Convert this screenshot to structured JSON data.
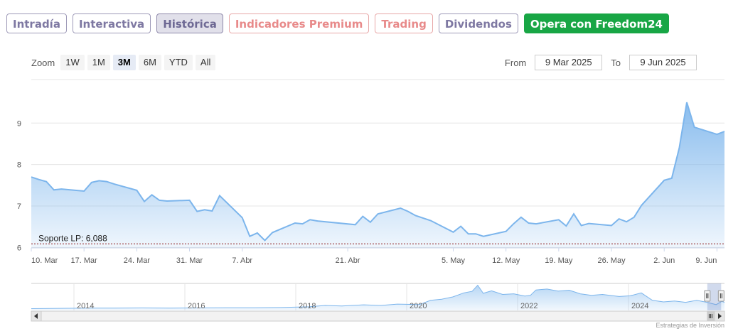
{
  "tabs": [
    {
      "label": "Intradía",
      "style": "normal"
    },
    {
      "label": "Interactiva",
      "style": "normal"
    },
    {
      "label": "Histórica",
      "style": "active"
    },
    {
      "label": "Indicadores Premium",
      "style": "pink"
    },
    {
      "label": "Trading",
      "style": "pink"
    },
    {
      "label": "Dividendos",
      "style": "normal"
    },
    {
      "label": "Opera con Freedom24",
      "style": "cta"
    }
  ],
  "zoom": {
    "label": "Zoom",
    "buttons": [
      "1W",
      "1M",
      "3M",
      "6M",
      "YTD",
      "All"
    ],
    "selected": "3M"
  },
  "range": {
    "from_label": "From",
    "from_value": "9 Mar 2025",
    "to_label": "To",
    "to_value": "9 Jun 2025"
  },
  "credit": "Estrategias de Inversión",
  "colors": {
    "line": "#7cb5ec",
    "support": "#8b1a1a",
    "cta": "#18a645"
  },
  "chart_data": {
    "type": "area",
    "y_ticks": [
      6,
      7,
      8,
      9
    ],
    "ylim": [
      5.99,
      10.05
    ],
    "x_range": [
      "2025-03-10",
      "2025-06-10"
    ],
    "x_ticks": [
      {
        "date": "2025-03-10",
        "label": "10. Mar"
      },
      {
        "date": "2025-03-17",
        "label": "17. Mar"
      },
      {
        "date": "2025-03-24",
        "label": "24. Mar"
      },
      {
        "date": "2025-03-31",
        "label": "31. Mar"
      },
      {
        "date": "2025-04-07",
        "label": "7. Abr"
      },
      {
        "date": "2025-04-21",
        "label": "21. Abr"
      },
      {
        "date": "2025-05-05",
        "label": "5. May"
      },
      {
        "date": "2025-05-12",
        "label": "12. May"
      },
      {
        "date": "2025-05-19",
        "label": "19. May"
      },
      {
        "date": "2025-05-26",
        "label": "26. May"
      },
      {
        "date": "2025-06-02",
        "label": "2. Jun"
      },
      {
        "date": "2025-06-09",
        "label": "9. Jun"
      }
    ],
    "support": {
      "label": "Soporte LP: 6,088",
      "value": 6.088
    },
    "series": [
      {
        "points": [
          [
            "2025-03-10",
            7.7
          ],
          [
            "2025-03-11",
            7.64
          ],
          [
            "2025-03-12",
            7.59
          ],
          [
            "2025-03-13",
            7.39
          ],
          [
            "2025-03-14",
            7.41
          ],
          [
            "2025-03-17",
            7.36
          ],
          [
            "2025-03-18",
            7.57
          ],
          [
            "2025-03-19",
            7.61
          ],
          [
            "2025-03-20",
            7.59
          ],
          [
            "2025-03-21",
            7.53
          ],
          [
            "2025-03-24",
            7.38
          ],
          [
            "2025-03-25",
            7.11
          ],
          [
            "2025-03-26",
            7.27
          ],
          [
            "2025-03-27",
            7.14
          ],
          [
            "2025-03-28",
            7.12
          ],
          [
            "2025-03-31",
            7.14
          ],
          [
            "2025-04-01",
            6.87
          ],
          [
            "2025-04-02",
            6.91
          ],
          [
            "2025-04-03",
            6.88
          ],
          [
            "2025-04-04",
            7.25
          ],
          [
            "2025-04-07",
            6.72
          ],
          [
            "2025-04-08",
            6.27
          ],
          [
            "2025-04-09",
            6.35
          ],
          [
            "2025-04-10",
            6.17
          ],
          [
            "2025-04-11",
            6.36
          ],
          [
            "2025-04-14",
            6.59
          ],
          [
            "2025-04-15",
            6.57
          ],
          [
            "2025-04-16",
            6.67
          ],
          [
            "2025-04-17",
            6.64
          ],
          [
            "2025-04-22",
            6.55
          ],
          [
            "2025-04-23",
            6.75
          ],
          [
            "2025-04-24",
            6.61
          ],
          [
            "2025-04-25",
            6.81
          ],
          [
            "2025-04-28",
            6.95
          ],
          [
            "2025-04-29",
            6.87
          ],
          [
            "2025-04-30",
            6.77
          ],
          [
            "2025-05-02",
            6.65
          ],
          [
            "2025-05-05",
            6.37
          ],
          [
            "2025-05-06",
            6.51
          ],
          [
            "2025-05-07",
            6.33
          ],
          [
            "2025-05-08",
            6.33
          ],
          [
            "2025-05-09",
            6.27
          ],
          [
            "2025-05-12",
            6.39
          ],
          [
            "2025-05-13",
            6.57
          ],
          [
            "2025-05-14",
            6.73
          ],
          [
            "2025-05-15",
            6.59
          ],
          [
            "2025-05-16",
            6.57
          ],
          [
            "2025-05-19",
            6.67
          ],
          [
            "2025-05-20",
            6.52
          ],
          [
            "2025-05-21",
            6.81
          ],
          [
            "2025-05-22",
            6.53
          ],
          [
            "2025-05-23",
            6.58
          ],
          [
            "2025-05-26",
            6.53
          ],
          [
            "2025-05-27",
            6.69
          ],
          [
            "2025-05-28",
            6.62
          ],
          [
            "2025-05-29",
            6.73
          ],
          [
            "2025-05-30",
            7.02
          ],
          [
            "2025-06-02",
            7.62
          ],
          [
            "2025-06-03",
            7.67
          ],
          [
            "2025-06-04",
            8.4
          ],
          [
            "2025-06-05",
            9.5
          ],
          [
            "2025-06-06",
            8.9
          ],
          [
            "2025-06-09",
            8.73
          ],
          [
            "2025-06-10",
            8.8
          ]
        ]
      }
    ],
    "navigator": {
      "x_range": [
        2013.0,
        2025.5
      ],
      "labels": [
        "2014",
        "2016",
        "2018",
        "2020",
        "2022",
        "2024"
      ],
      "points": [
        [
          2013.0,
          0.8
        ],
        [
          2013.5,
          0.9
        ],
        [
          2014.0,
          1.0
        ],
        [
          2014.5,
          1.0
        ],
        [
          2015.0,
          1.1
        ],
        [
          2015.5,
          1.0
        ],
        [
          2016.0,
          1.1
        ],
        [
          2016.5,
          1.2
        ],
        [
          2017.0,
          1.2
        ],
        [
          2017.5,
          1.3
        ],
        [
          2018.0,
          1.6
        ],
        [
          2018.3,
          2.2
        ],
        [
          2018.6,
          2.0
        ],
        [
          2019.0,
          2.5
        ],
        [
          2019.3,
          2.2
        ],
        [
          2019.6,
          2.8
        ],
        [
          2020.0,
          2.6
        ],
        [
          2020.2,
          4.5
        ],
        [
          2020.4,
          5.0
        ],
        [
          2020.6,
          6.0
        ],
        [
          2020.8,
          7.8
        ],
        [
          2020.95,
          8.5
        ],
        [
          2021.05,
          11.2
        ],
        [
          2021.15,
          7.6
        ],
        [
          2021.3,
          8.7
        ],
        [
          2021.5,
          7.1
        ],
        [
          2021.7,
          7.4
        ],
        [
          2021.9,
          6.4
        ],
        [
          2022.0,
          6.7
        ],
        [
          2022.1,
          9.1
        ],
        [
          2022.3,
          9.5
        ],
        [
          2022.5,
          8.6
        ],
        [
          2022.7,
          9.0
        ],
        [
          2022.9,
          7.4
        ],
        [
          2023.1,
          6.7
        ],
        [
          2023.3,
          7.1
        ],
        [
          2023.6,
          6.2
        ],
        [
          2023.8,
          6.5
        ],
        [
          2024.0,
          7.8
        ],
        [
          2024.2,
          4.5
        ],
        [
          2024.4,
          3.8
        ],
        [
          2024.6,
          4.2
        ],
        [
          2024.8,
          3.6
        ],
        [
          2025.0,
          4.5
        ],
        [
          2025.2,
          3.5
        ],
        [
          2025.35,
          2.6
        ],
        [
          2025.45,
          4.0
        ],
        [
          2025.5,
          3.6
        ]
      ],
      "ylim": [
        0,
        12
      ],
      "window": [
        2025.19,
        2025.44
      ]
    }
  }
}
